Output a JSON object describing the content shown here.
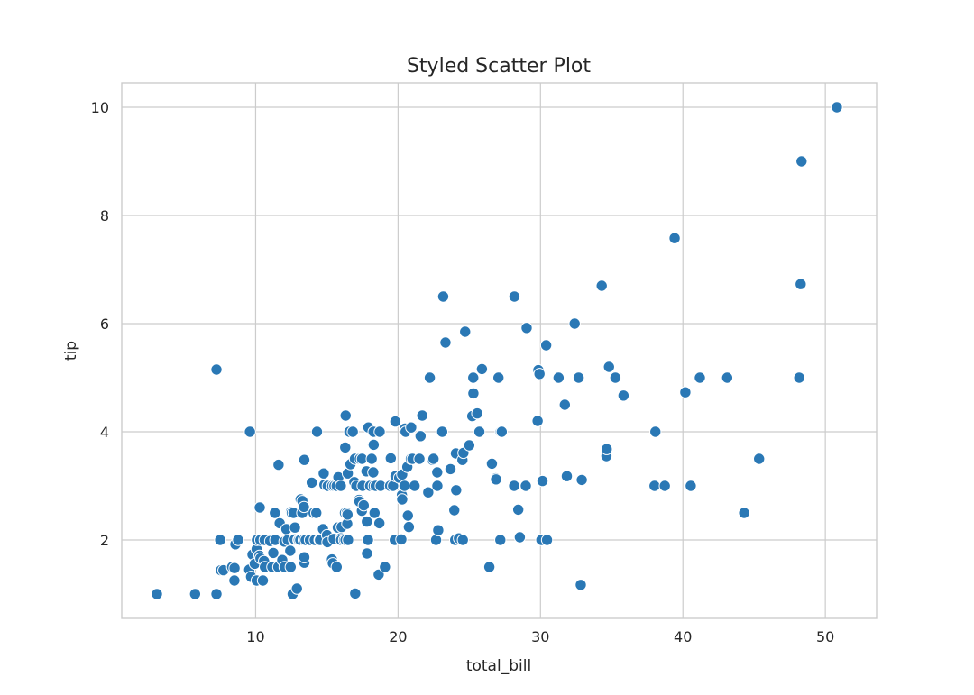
{
  "chart_data": {
    "type": "scatter",
    "title": "Styled Scatter Plot",
    "xlabel": "total_bill",
    "ylabel": "tip",
    "xlim": [
      0.6,
      53.6
    ],
    "ylim": [
      0.55,
      10.45
    ],
    "xticks": [
      10,
      20,
      30,
      40,
      50
    ],
    "yticks": [
      2,
      4,
      6,
      8,
      10
    ],
    "grid": true,
    "color": "#2a78b5",
    "points": [
      [
        3.07,
        1.0
      ],
      [
        5.75,
        1.0
      ],
      [
        7.25,
        1.0
      ],
      [
        7.25,
        5.15
      ],
      [
        7.51,
        2.0
      ],
      [
        7.56,
        1.44
      ],
      [
        7.74,
        1.44
      ],
      [
        8.35,
        1.5
      ],
      [
        8.51,
        1.25
      ],
      [
        8.52,
        1.48
      ],
      [
        8.58,
        1.92
      ],
      [
        8.77,
        2.0
      ],
      [
        9.55,
        1.45
      ],
      [
        9.6,
        4.0
      ],
      [
        9.68,
        1.32
      ],
      [
        9.78,
        1.73
      ],
      [
        9.94,
        1.56
      ],
      [
        10.07,
        1.25
      ],
      [
        10.07,
        1.83
      ],
      [
        10.09,
        2.0
      ],
      [
        10.27,
        1.71
      ],
      [
        10.29,
        2.6
      ],
      [
        10.33,
        2.0
      ],
      [
        10.34,
        1.66
      ],
      [
        10.51,
        1.25
      ],
      [
        10.59,
        1.61
      ],
      [
        10.63,
        2.0
      ],
      [
        10.65,
        1.5
      ],
      [
        11.02,
        1.98
      ],
      [
        11.17,
        1.5
      ],
      [
        11.24,
        1.76
      ],
      [
        11.35,
        2.5
      ],
      [
        11.38,
        2.0
      ],
      [
        11.59,
        1.5
      ],
      [
        11.61,
        3.39
      ],
      [
        11.69,
        2.31
      ],
      [
        11.87,
        1.63
      ],
      [
        12.02,
        1.97
      ],
      [
        12.03,
        1.5
      ],
      [
        12.16,
        2.2
      ],
      [
        12.26,
        2.0
      ],
      [
        12.43,
        1.8
      ],
      [
        12.46,
        1.5
      ],
      [
        12.48,
        2.52
      ],
      [
        12.54,
        2.5
      ],
      [
        12.6,
        1.0
      ],
      [
        12.66,
        2.5
      ],
      [
        12.69,
        2.0
      ],
      [
        12.74,
        2.01
      ],
      [
        12.76,
        2.23
      ],
      [
        12.9,
        1.1
      ],
      [
        13.0,
        2.0
      ],
      [
        13.03,
        2.0
      ],
      [
        13.13,
        2.0
      ],
      [
        13.16,
        2.75
      ],
      [
        13.27,
        2.5
      ],
      [
        13.28,
        2.72
      ],
      [
        13.37,
        2.0
      ],
      [
        13.39,
        2.61
      ],
      [
        13.42,
        1.58
      ],
      [
        13.42,
        3.48
      ],
      [
        13.42,
        1.68
      ],
      [
        13.51,
        2.0
      ],
      [
        13.81,
        2.0
      ],
      [
        13.94,
        3.06
      ],
      [
        14.07,
        2.5
      ],
      [
        14.15,
        2.0
      ],
      [
        14.26,
        2.5
      ],
      [
        14.31,
        4.0
      ],
      [
        14.48,
        2.0
      ],
      [
        14.52,
        2.0
      ],
      [
        14.73,
        2.2
      ],
      [
        14.78,
        3.23
      ],
      [
        14.83,
        3.02
      ],
      [
        15.01,
        2.09
      ],
      [
        15.04,
        1.96
      ],
      [
        15.06,
        3.0
      ],
      [
        15.36,
        1.64
      ],
      [
        15.38,
        3.0
      ],
      [
        15.42,
        1.57
      ],
      [
        15.48,
        2.02
      ],
      [
        15.53,
        3.0
      ],
      [
        15.69,
        1.5
      ],
      [
        15.69,
        3.0
      ],
      [
        15.77,
        2.23
      ],
      [
        15.81,
        3.16
      ],
      [
        15.98,
        2.03
      ],
      [
        15.98,
        3.0
      ],
      [
        16.0,
        2.0
      ],
      [
        16.04,
        2.24
      ],
      [
        16.21,
        2.0
      ],
      [
        16.27,
        2.5
      ],
      [
        16.29,
        3.71
      ],
      [
        16.31,
        2.0
      ],
      [
        16.32,
        4.3
      ],
      [
        16.4,
        2.5
      ],
      [
        16.43,
        2.3
      ],
      [
        16.45,
        2.47
      ],
      [
        16.47,
        3.23
      ],
      [
        16.49,
        2.0
      ],
      [
        16.58,
        4.0
      ],
      [
        16.66,
        3.4
      ],
      [
        16.82,
        4.0
      ],
      [
        16.93,
        3.07
      ],
      [
        16.97,
        3.5
      ],
      [
        16.99,
        1.01
      ],
      [
        17.07,
        3.0
      ],
      [
        17.26,
        2.74
      ],
      [
        17.29,
        2.71
      ],
      [
        17.31,
        3.5
      ],
      [
        17.46,
        2.54
      ],
      [
        17.47,
        3.5
      ],
      [
        17.51,
        3.0
      ],
      [
        17.59,
        2.64
      ],
      [
        17.78,
        3.27
      ],
      [
        17.81,
        2.34
      ],
      [
        17.82,
        1.75
      ],
      [
        17.89,
        2.0
      ],
      [
        17.92,
        4.08
      ],
      [
        18.04,
        3.0
      ],
      [
        18.15,
        3.5
      ],
      [
        18.24,
        3.76
      ],
      [
        18.26,
        3.25
      ],
      [
        18.28,
        4.0
      ],
      [
        18.29,
        3.76
      ],
      [
        18.29,
        3.0
      ],
      [
        18.35,
        2.5
      ],
      [
        18.43,
        3.0
      ],
      [
        18.64,
        1.36
      ],
      [
        18.69,
        2.31
      ],
      [
        18.71,
        4.0
      ],
      [
        18.78,
        3.0
      ],
      [
        19.08,
        1.5
      ],
      [
        19.44,
        3.0
      ],
      [
        19.49,
        3.51
      ],
      [
        19.65,
        3.0
      ],
      [
        19.77,
        2.0
      ],
      [
        19.81,
        4.19
      ],
      [
        19.82,
        3.18
      ],
      [
        20.08,
        3.15
      ],
      [
        20.23,
        2.01
      ],
      [
        20.27,
        2.83
      ],
      [
        20.29,
        3.21
      ],
      [
        20.29,
        2.75
      ],
      [
        20.45,
        3.0
      ],
      [
        20.49,
        4.06
      ],
      [
        20.53,
        4.0
      ],
      [
        20.65,
        3.35
      ],
      [
        20.69,
        2.45
      ],
      [
        20.76,
        2.24
      ],
      [
        20.9,
        3.5
      ],
      [
        20.92,
        4.08
      ],
      [
        21.01,
        3.5
      ],
      [
        21.16,
        3.0
      ],
      [
        21.5,
        3.5
      ],
      [
        21.58,
        3.92
      ],
      [
        21.7,
        4.3
      ],
      [
        22.12,
        2.88
      ],
      [
        22.23,
        5.0
      ],
      [
        22.42,
        3.48
      ],
      [
        22.49,
        3.5
      ],
      [
        22.67,
        2.0
      ],
      [
        22.75,
        3.25
      ],
      [
        22.76,
        3.0
      ],
      [
        22.82,
        2.18
      ],
      [
        23.1,
        4.0
      ],
      [
        23.17,
        6.5
      ],
      [
        23.33,
        5.65
      ],
      [
        23.68,
        3.31
      ],
      [
        23.95,
        2.55
      ],
      [
        24.01,
        2.0
      ],
      [
        24.06,
        3.6
      ],
      [
        24.08,
        2.92
      ],
      [
        24.27,
        2.03
      ],
      [
        24.52,
        3.48
      ],
      [
        24.55,
        2.0
      ],
      [
        24.59,
        3.61
      ],
      [
        24.71,
        5.85
      ],
      [
        25.0,
        3.75
      ],
      [
        25.21,
        4.29
      ],
      [
        25.28,
        5.0
      ],
      [
        25.29,
        4.71
      ],
      [
        25.56,
        4.34
      ],
      [
        25.71,
        4.0
      ],
      [
        25.89,
        5.16
      ],
      [
        26.41,
        1.5
      ],
      [
        26.59,
        3.41
      ],
      [
        26.86,
        3.14
      ],
      [
        26.88,
        3.12
      ],
      [
        27.05,
        5.0
      ],
      [
        27.18,
        2.0
      ],
      [
        27.2,
        4.0
      ],
      [
        27.28,
        4.0
      ],
      [
        28.15,
        3.0
      ],
      [
        28.17,
        6.5
      ],
      [
        28.44,
        2.56
      ],
      [
        28.55,
        2.05
      ],
      [
        28.97,
        3.0
      ],
      [
        29.03,
        5.92
      ],
      [
        29.8,
        4.2
      ],
      [
        29.85,
        5.14
      ],
      [
        29.93,
        5.07
      ],
      [
        30.06,
        2.0
      ],
      [
        30.14,
        3.09
      ],
      [
        30.4,
        5.6
      ],
      [
        30.46,
        2.0
      ],
      [
        31.27,
        5.0
      ],
      [
        31.71,
        4.5
      ],
      [
        31.85,
        3.18
      ],
      [
        32.4,
        6.0
      ],
      [
        32.68,
        5.0
      ],
      [
        32.83,
        1.17
      ],
      [
        32.9,
        3.11
      ],
      [
        34.3,
        6.7
      ],
      [
        34.63,
        3.55
      ],
      [
        34.65,
        3.68
      ],
      [
        34.81,
        5.2
      ],
      [
        35.26,
        5.0
      ],
      [
        35.83,
        4.67
      ],
      [
        38.01,
        3.0
      ],
      [
        38.07,
        4.0
      ],
      [
        38.73,
        3.0
      ],
      [
        39.42,
        7.58
      ],
      [
        40.17,
        4.73
      ],
      [
        40.55,
        3.0
      ],
      [
        41.19,
        5.0
      ],
      [
        43.11,
        5.0
      ],
      [
        44.3,
        2.5
      ],
      [
        45.35,
        3.5
      ],
      [
        48.17,
        5.0
      ],
      [
        48.27,
        6.73
      ],
      [
        48.33,
        9.0
      ],
      [
        50.81,
        10.0
      ]
    ]
  }
}
